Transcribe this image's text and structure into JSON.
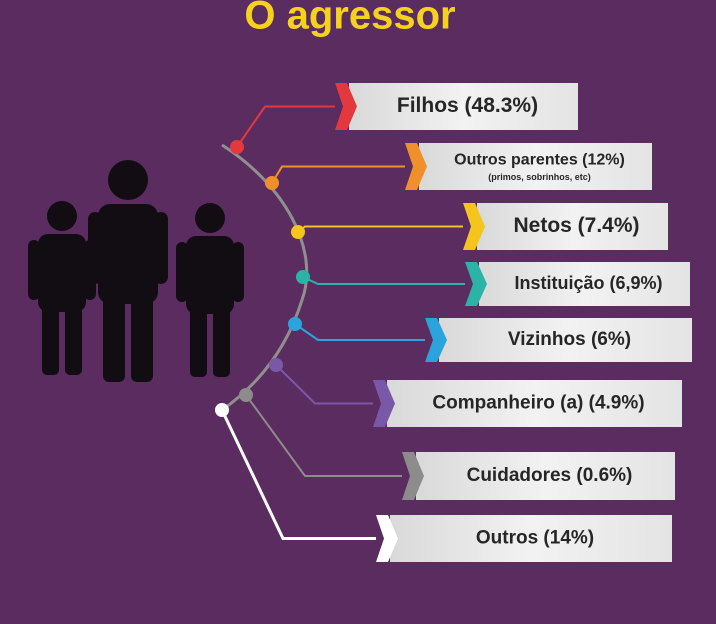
{
  "title": "O agressor",
  "items": [
    {
      "label": "Filhos (48.3%)",
      "color": "#e3383d"
    },
    {
      "label": "Outros parentes (12%)",
      "note": "(primos, sobrinhos, etc)",
      "color": "#f0902a"
    },
    {
      "label": "Netos (7.4%)",
      "color": "#f3c51d"
    },
    {
      "label": "Instituição (6,9%)",
      "color": "#2ab3a6"
    },
    {
      "label": "Vizinhos (6%)",
      "color": "#2ba4dc"
    },
    {
      "label": "Companheiro (a) (4.9%)",
      "color": "#7a58a8"
    },
    {
      "label": "Cuidadores (0.6%)",
      "color": "#8c8c8c"
    },
    {
      "label": "Outros (14%)",
      "color": "#ffffff"
    }
  ]
}
